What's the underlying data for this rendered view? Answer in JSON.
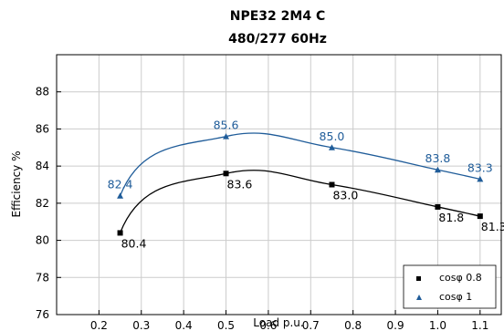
{
  "chart_data": {
    "type": "line",
    "title": "NPE32 2M4 C",
    "subtitle": "480/277 60Hz",
    "xlabel": "Load p.u.",
    "ylabel": "Efficiency %",
    "xlim": [
      0.1,
      1.15
    ],
    "ylim": [
      76,
      90
    ],
    "xticks": [
      "0.2",
      "0.3",
      "0.4",
      "0.5",
      "0.6",
      "0.7",
      "0.8",
      "0.9",
      "1.0",
      "1.1"
    ],
    "yticks": [
      "76",
      "78",
      "80",
      "82",
      "84",
      "86",
      "88"
    ],
    "grid": true,
    "legend_position": "bottom-right",
    "series": [
      {
        "name": "cosφ 0.8",
        "marker": "square",
        "color": "#000000",
        "x": [
          0.25,
          0.5,
          0.75,
          1.0,
          1.1
        ],
        "y": [
          80.4,
          83.6,
          83.0,
          81.8,
          81.3
        ],
        "labels": [
          "80.4",
          "83.6",
          "83.0",
          "81.8",
          "81.3"
        ]
      },
      {
        "name": "cosφ 1",
        "marker": "triangle",
        "color": "#1f5c99",
        "x": [
          0.25,
          0.5,
          0.75,
          1.0,
          1.1
        ],
        "y": [
          82.4,
          85.6,
          85.0,
          83.8,
          83.3
        ],
        "labels": [
          "82.4",
          "85.6",
          "85.0",
          "83.8",
          "83.3"
        ]
      }
    ]
  }
}
